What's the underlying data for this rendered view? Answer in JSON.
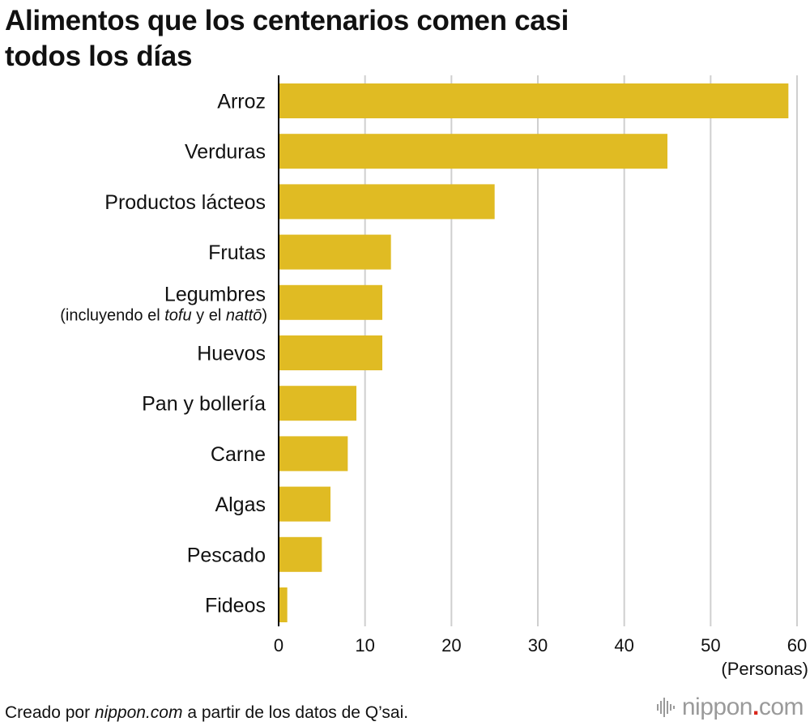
{
  "chart_data": {
    "type": "bar",
    "orientation": "horizontal",
    "title_lines": [
      "Alimentos que los centenarios comen casi",
      "todos los días"
    ],
    "categories": [
      "Arroz",
      "Verduras",
      "Productos lácteos",
      "Frutas",
      "Legumbres",
      "Huevos",
      "Pan y bollería",
      "Carne",
      "Algas",
      "Pescado",
      "Fideos"
    ],
    "category_notes": {
      "Legumbres": {
        "prefix": "(incluyendo el ",
        "em1": "tofu",
        "mid": " y el ",
        "em2": "nattō",
        "suffix": ")"
      }
    },
    "values": [
      59,
      45,
      25,
      13,
      12,
      12,
      9,
      8,
      6,
      5,
      1
    ],
    "xlim": [
      0,
      60
    ],
    "xticks": [
      0,
      10,
      20,
      30,
      40,
      50,
      60
    ],
    "xlabel": "(Personas)",
    "grid": true,
    "bar_color": "#e0bb23",
    "grid_color": "#cfcfcf"
  },
  "footer": {
    "prefix": "Creado por ",
    "source_em": "nippon.com",
    "suffix": " a partir de los datos de Q’sai.",
    "logo_main": "nippon",
    "logo_dot": ".",
    "logo_tail": "com"
  }
}
